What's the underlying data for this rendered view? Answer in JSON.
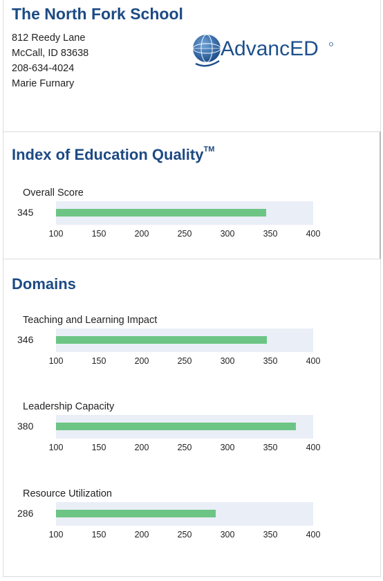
{
  "school": {
    "name": "The North Fork School",
    "address_line1": "812 Reedy Lane",
    "address_line2": "McCall, ID  83638",
    "phone": "208-634-4024",
    "contact": "Marie Furnary",
    "logo_text": "AdvancED"
  },
  "index_section": {
    "title": "Index of Education Quality",
    "trademark": "TM"
  },
  "domains_section": {
    "title": "Domains"
  },
  "colors": {
    "title_blue": "#1c4a84",
    "bar_green": "#6cc584",
    "track_bg": "#e9eef7"
  },
  "chart_data": [
    {
      "type": "bar",
      "orientation": "horizontal",
      "section": "Index of Education Quality",
      "categories": [
        "Overall Score"
      ],
      "values": [
        345
      ],
      "value_label": "345",
      "xlim": [
        100,
        400
      ],
      "ticks": [
        "100",
        "150",
        "200",
        "250",
        "300",
        "350",
        "400"
      ]
    },
    {
      "type": "bar",
      "orientation": "horizontal",
      "section": "Domains",
      "categories": [
        "Teaching and Learning Impact"
      ],
      "values": [
        346
      ],
      "value_label": "346",
      "xlim": [
        100,
        400
      ],
      "ticks": [
        "100",
        "150",
        "200",
        "250",
        "300",
        "350",
        "400"
      ]
    },
    {
      "type": "bar",
      "orientation": "horizontal",
      "section": "Domains",
      "categories": [
        "Leadership Capacity"
      ],
      "values": [
        380
      ],
      "value_label": "380",
      "xlim": [
        100,
        400
      ],
      "ticks": [
        "100",
        "150",
        "200",
        "250",
        "300",
        "350",
        "400"
      ]
    },
    {
      "type": "bar",
      "orientation": "horizontal",
      "section": "Domains",
      "categories": [
        "Resource Utilization"
      ],
      "values": [
        286
      ],
      "value_label": "286",
      "xlim": [
        100,
        400
      ],
      "ticks": [
        "100",
        "150",
        "200",
        "250",
        "300",
        "350",
        "400"
      ]
    }
  ]
}
